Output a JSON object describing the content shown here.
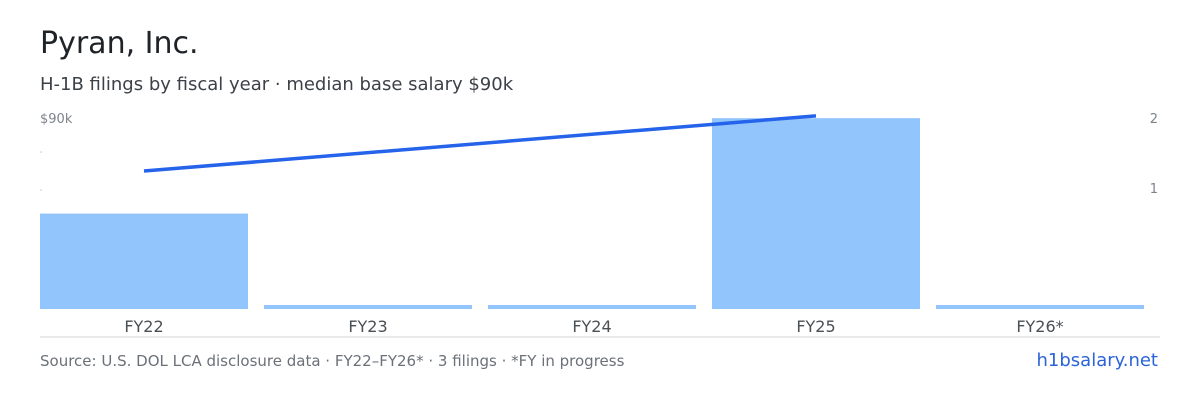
{
  "header": {
    "title": "Pyran, Inc.",
    "subtitle": "H-1B filings by fiscal year · median base salary $90k"
  },
  "axes": {
    "left_top_label": "$90k",
    "right_top_label": "2",
    "right_mid_label": "1"
  },
  "chart_data": {
    "type": "bar",
    "categories": [
      "FY22",
      "FY23",
      "FY24",
      "FY25",
      "FY26*"
    ],
    "series": [
      {
        "type": "bar",
        "values": [
          1,
          0,
          0,
          2,
          0
        ],
        "axis": "right"
      },
      {
        "type": "line",
        "x": [
          "FY22",
          "FY25"
        ],
        "values": [
          86,
          90
        ],
        "axis": "left"
      }
    ],
    "bar_ylim": [
      0,
      2.4
    ],
    "line_ylim": [
      76,
      92.6
    ],
    "colors": {
      "bar": "#93c5fd",
      "line": "#2563eb",
      "axis": "#d0d4d9"
    }
  },
  "footer": {
    "source": "Source: U.S. DOL LCA disclosure data · FY22–FY26* · 3 filings · *FY in progress",
    "link": "h1bsalary.net"
  }
}
